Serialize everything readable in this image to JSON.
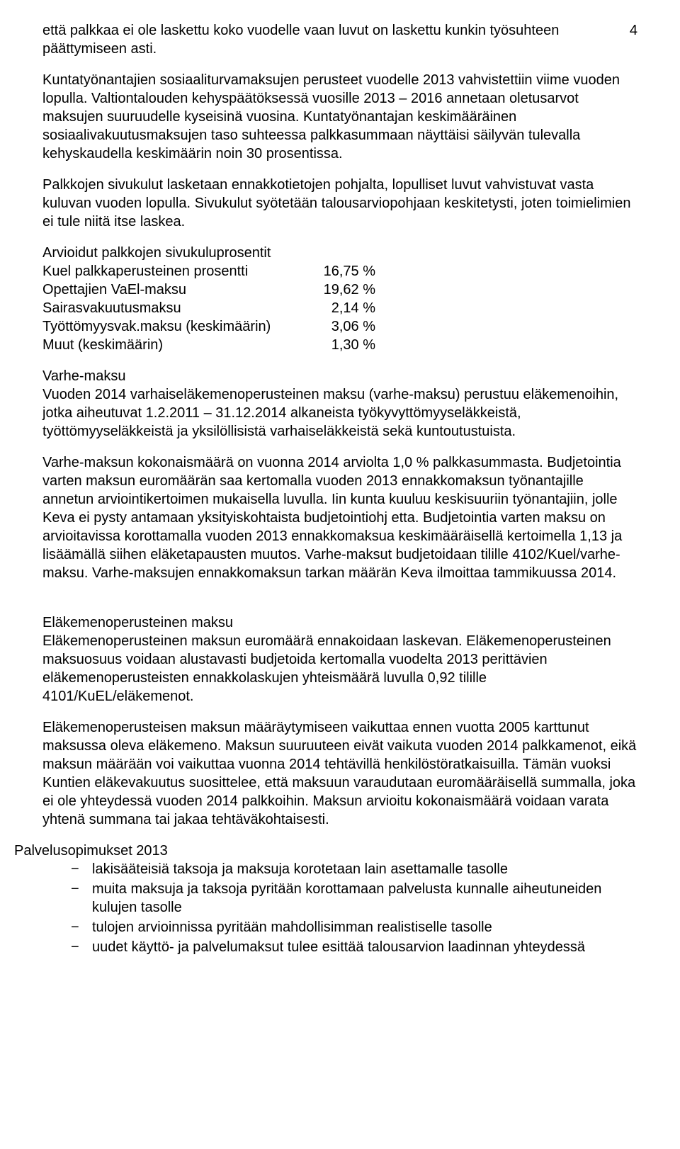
{
  "page_number": "4",
  "paragraphs": {
    "p1": "että palkkaa ei ole laskettu koko vuodelle vaan luvut on laskettu kunkin työsuhteen päättymiseen asti.",
    "p2": "Kuntatyönantajien sosiaaliturvamaksujen perusteet vuodelle 2013 vahvistettiin viime vuoden lopulla. Valtiontalouden kehyspäätöksessä vuosille 2013 – 2016 annetaan oletusarvot maksujen suuruudelle kyseisinä vuosina. Kuntatyönantajan keskimääräinen sosiaalivakuutusmaksujen taso suhteessa palkkasummaan näyttäisi säilyvän tulevalla kehyskaudella keskimäärin noin 30 prosentissa.",
    "p3": "Palkkojen sivukulut lasketaan ennakkotietojen pohjalta, lopulliset luvut vahvistuvat vasta kuluvan vuoden lopulla. Sivukulut syötetään talousarviopohjaan keskitetysti, joten toimielimien ei tule niitä itse laskea.",
    "percent_title": "Arvioidut palkkojen sivukuluprosentit",
    "varhe_title": "Varhe-maksu",
    "p4": "Vuoden 2014 varhaiseläkemenoperusteinen maksu (varhe-maksu) perustuu eläkemenoihin, jotka aiheutuvat 1.2.2011 – 31.12.2014 alkaneista työkyvyttömyyseläkkeistä, työttömyyseläkkeistä ja yksilöllisistä varhaiseläkkeistä sekä kuntoutustuista.",
    "p5": "Varhe-maksun kokonaismäärä on vuonna 2014 arviolta 1,0 % palkkasummasta. Budjetointia varten maksun euromäärän saa kertomalla vuoden 2013 ennakkomaksun työnantajille annetun arviointikertoimen mukaisella luvulla. Iin kunta kuuluu keskisuuriin työnantajiin, jolle Keva ei pysty antamaan yksityiskohtaista budjetointiohj etta. Budjetointia varten maksu on arvioitavissa korottamalla vuoden 2013 ennakkomaksua keskimääräisellä kertoimella 1,13 ja lisäämällä siihen eläketapausten muutos. Varhe-maksut budjetoidaan tilille 4102/Kuel/varhe-maksu. Varhe-maksujen ennakkomaksun tarkan määrän Keva ilmoittaa tammikuussa 2014.",
    "elake_title": "Eläkemenoperusteinen maksu",
    "p6": "Eläkemenoperusteinen maksun euromäärä ennakoidaan laskevan. Eläkemenoperusteinen maksuosuus voidaan alustavasti budjetoida kertomalla vuodelta 2013 perittävien eläkemenoperusteisten ennakkolaskujen yhteismäärä luvulla 0,92 tilille 4101/KuEL/eläkemenot.",
    "p7": "Eläkemenoperusteisen maksun määräytymiseen vaikuttaa ennen vuotta 2005 karttunut maksussa oleva eläkemeno. Maksun suuruuteen eivät vaikuta vuoden 2014 palkkamenot, eikä maksun määrään voi vaikuttaa vuonna 2014 tehtävillä henkilöstöratkaisuilla. Tämän vuoksi Kuntien eläkevakuutus suosittelee, että maksuun varaudutaan euromääräisellä summalla, joka ei ole yhteydessä vuoden 2014 palkkoihin. Maksun arvioitu kokonaismäärä voidaan varata yhtenä summana tai jakaa tehtäväkohtaisesti.",
    "palvelu_title": "Palvelusopimukset 2013"
  },
  "percent_rows": [
    {
      "label": "Kuel palkkaperusteinen prosentti",
      "value": "16,75 %"
    },
    {
      "label": "Opettajien VaEl-maksu",
      "value": "19,62 %"
    },
    {
      "label": "Sairasvakuutusmaksu",
      "value": "2,14 %"
    },
    {
      "label": "Työttömyysvak.maksu (keskimäärin)",
      "value": "3,06 %"
    },
    {
      "label": "Muut (keskimäärin)",
      "value": "1,30 %"
    }
  ],
  "bullets": [
    "lakisääteisiä taksoja ja maksuja korotetaan lain asettamalle tasolle",
    "muita maksuja ja taksoja pyritään korottamaan palvelusta kunnalle aiheutuneiden kulujen tasolle",
    "tulojen arvioinnissa pyritään mahdollisimman realistiselle tasolle",
    "uudet käyttö- ja palvelumaksut tulee esittää talousarvion laadinnan yhteydessä"
  ]
}
